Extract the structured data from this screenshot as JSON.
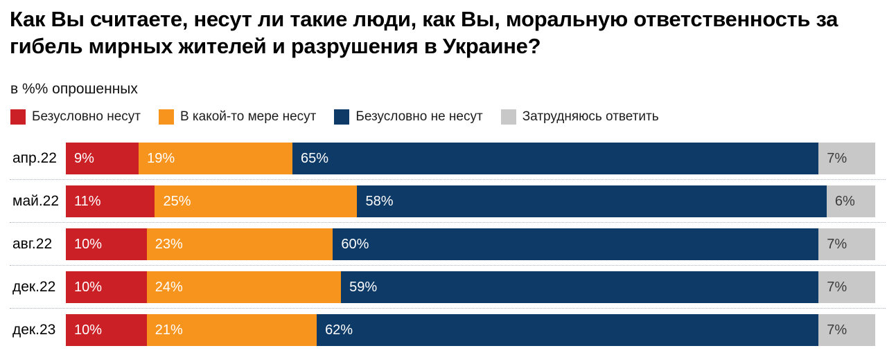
{
  "title": "Как Вы считаете, несут ли такие люди, как Вы, моральную ответственность за гибель мирных жителей и разрушения в Украине?",
  "subtitle": "в %% опрошенных",
  "colors": {
    "definitely_yes": "#cb2026",
    "somewhat_yes": "#f7941d",
    "definitely_no": "#0e3a68",
    "hard_to_say": "#c8c8c8",
    "value_text_light": "#ffffff",
    "value_text_dark": "#3c3c3c",
    "separator": "#aab2bd"
  },
  "chart_data": {
    "type": "bar",
    "orientation": "horizontal",
    "stacked": true,
    "xlim": [
      0,
      100
    ],
    "value_suffix": "%",
    "grid": false,
    "legend_position": "top",
    "title": "Как Вы считаете, несут ли такие люди, как Вы, моральную ответственность за гибель мирных жителей и разрушения в Украине?",
    "subtitle": "в %% опрошенных",
    "categories": [
      "апр.22",
      "май.22",
      "авг.22",
      "дек.22",
      "дек.23"
    ],
    "series": [
      {
        "name": "Безусловно несут",
        "color": "#cb2026",
        "text_color": "#ffffff",
        "values": [
          9,
          11,
          10,
          10,
          10
        ]
      },
      {
        "name": "В какой-то мере несут",
        "color": "#f7941d",
        "text_color": "#ffffff",
        "values": [
          19,
          25,
          23,
          24,
          21
        ]
      },
      {
        "name": "Безусловно не несут",
        "color": "#0e3a68",
        "text_color": "#ffffff",
        "values": [
          65,
          58,
          60,
          59,
          62
        ]
      },
      {
        "name": "Затрудняюсь ответить",
        "color": "#c8c8c8",
        "text_color": "#3c3c3c",
        "values": [
          7,
          6,
          7,
          7,
          7
        ]
      }
    ]
  }
}
